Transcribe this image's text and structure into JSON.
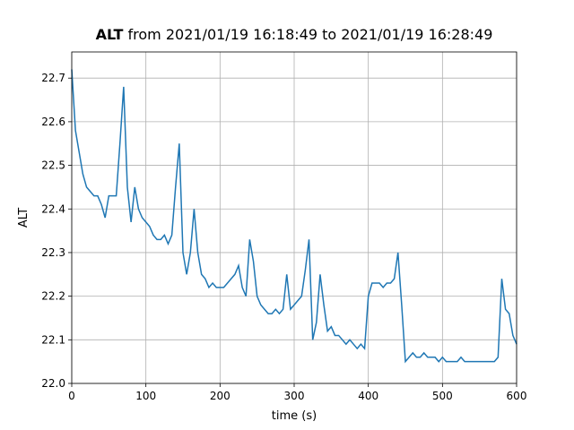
{
  "chart_data": {
    "type": "line",
    "title_bold": "ALT",
    "title": "from 2021/01/19 16:18:49 to 2021/01/19 16:28:49",
    "x_label": "time (s)",
    "y_label": "ALT",
    "x": [
      0,
      5,
      10,
      15,
      20,
      25,
      30,
      35,
      40,
      45,
      50,
      55,
      60,
      65,
      70,
      75,
      80,
      85,
      90,
      95,
      100,
      105,
      110,
      115,
      120,
      125,
      130,
      135,
      140,
      145,
      150,
      155,
      160,
      165,
      170,
      175,
      180,
      185,
      190,
      195,
      200,
      205,
      210,
      215,
      220,
      225,
      230,
      235,
      240,
      245,
      250,
      255,
      260,
      265,
      270,
      275,
      280,
      285,
      290,
      295,
      300,
      305,
      310,
      315,
      320,
      325,
      330,
      335,
      340,
      345,
      350,
      355,
      360,
      365,
      370,
      375,
      380,
      385,
      390,
      395,
      400,
      405,
      410,
      415,
      420,
      425,
      430,
      435,
      440,
      445,
      450,
      455,
      460,
      465,
      470,
      475,
      480,
      485,
      490,
      495,
      500,
      505,
      510,
      515,
      520,
      525,
      530,
      535,
      540,
      545,
      550,
      555,
      560,
      565,
      570,
      575,
      580,
      585,
      590,
      595,
      600
    ],
    "series": [
      {
        "color": "#1f77b4",
        "values": [
          22.72,
          22.58,
          22.53,
          22.48,
          22.45,
          22.44,
          22.43,
          22.43,
          22.41,
          22.38,
          22.43,
          22.43,
          22.43,
          22.55,
          22.68,
          22.45,
          22.37,
          22.45,
          22.4,
          22.38,
          22.37,
          22.36,
          22.34,
          22.33,
          22.33,
          22.34,
          22.32,
          22.34,
          22.45,
          22.55,
          22.3,
          22.25,
          22.3,
          22.4,
          22.3,
          22.25,
          22.24,
          22.22,
          22.23,
          22.22,
          22.22,
          22.22,
          22.23,
          22.24,
          22.25,
          22.27,
          22.22,
          22.2,
          22.33,
          22.28,
          22.2,
          22.18,
          22.17,
          22.16,
          22.16,
          22.17,
          22.16,
          22.17,
          22.25,
          22.17,
          22.18,
          22.19,
          22.2,
          22.26,
          22.33,
          22.1,
          22.14,
          22.25,
          22.18,
          22.12,
          22.13,
          22.11,
          22.11,
          22.1,
          22.09,
          22.1,
          22.09,
          22.08,
          22.09,
          22.08,
          22.2,
          22.23,
          22.23,
          22.23,
          22.22,
          22.23,
          22.23,
          22.24,
          22.3,
          22.18,
          22.05,
          22.06,
          22.07,
          22.06,
          22.06,
          22.07,
          22.06,
          22.06,
          22.06,
          22.05,
          22.06,
          22.05,
          22.05,
          22.05,
          22.05,
          22.06,
          22.05,
          22.05,
          22.05,
          22.05,
          22.05,
          22.05,
          22.05,
          22.05,
          22.05,
          22.06,
          22.24,
          22.17,
          22.16,
          22.11,
          22.09
        ]
      }
    ],
    "xlim": [
      0,
      600
    ],
    "xticks": [
      0,
      100,
      200,
      300,
      400,
      500,
      600
    ],
    "ylim": [
      22.0,
      22.76
    ],
    "yticks": [
      {
        "value": 22,
        "label": "22.0"
      },
      22.1,
      22.2,
      22.3,
      22.4,
      22.5,
      22.6,
      22.7
    ],
    "grid": true
  }
}
